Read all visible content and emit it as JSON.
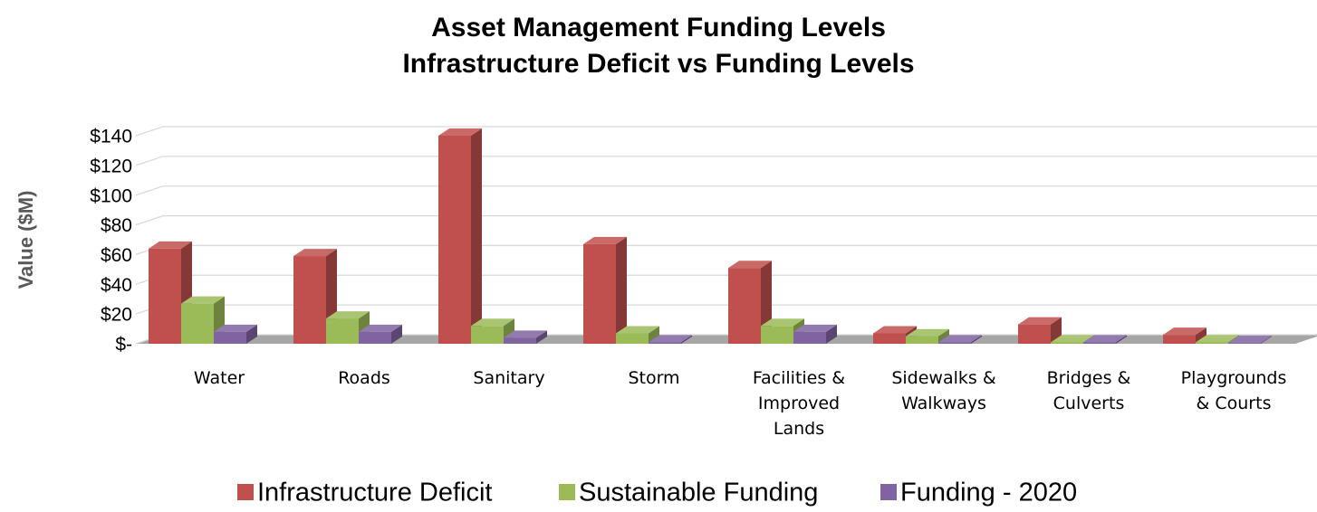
{
  "chart_data": {
    "type": "bar3d",
    "title": "Asset Management Funding Levels",
    "subtitle": "Infrastructure Deficit vs Funding Levels",
    "y_label": "Value ($M)",
    "categories": [
      "Water",
      "Roads",
      "Sanitary",
      "Storm",
      "Facilities & Improved Lands",
      "Sidewalks & Walkways",
      "Bridges & Culverts",
      "Playgrounds & Courts"
    ],
    "series": [
      {
        "name": "Infrastructure Deficit",
        "color": "#c0504d",
        "values": [
          64,
          59,
          140,
          67,
          51,
          7,
          13,
          6
        ]
      },
      {
        "name": "Sustainable Funding",
        "color": "#9bbb59",
        "values": [
          27,
          17,
          12,
          7,
          12,
          5,
          1,
          1
        ]
      },
      {
        "name": "Funding - 2020",
        "color": "#8064a2",
        "values": [
          8,
          8,
          4,
          1,
          8,
          1,
          1,
          0.5
        ]
      }
    ],
    "ylim": [
      0,
      140
    ],
    "yticks": [
      {
        "value": 0,
        "label": "$-"
      },
      {
        "value": 20,
        "label": "$20"
      },
      {
        "value": 40,
        "label": "$40"
      },
      {
        "value": 60,
        "label": "$60"
      },
      {
        "value": 80,
        "label": "$80"
      },
      {
        "value": 100,
        "label": "$100"
      },
      {
        "value": 120,
        "label": "$120"
      },
      {
        "value": 140,
        "label": "$140"
      }
    ],
    "grid": true,
    "legend": "bottom"
  }
}
